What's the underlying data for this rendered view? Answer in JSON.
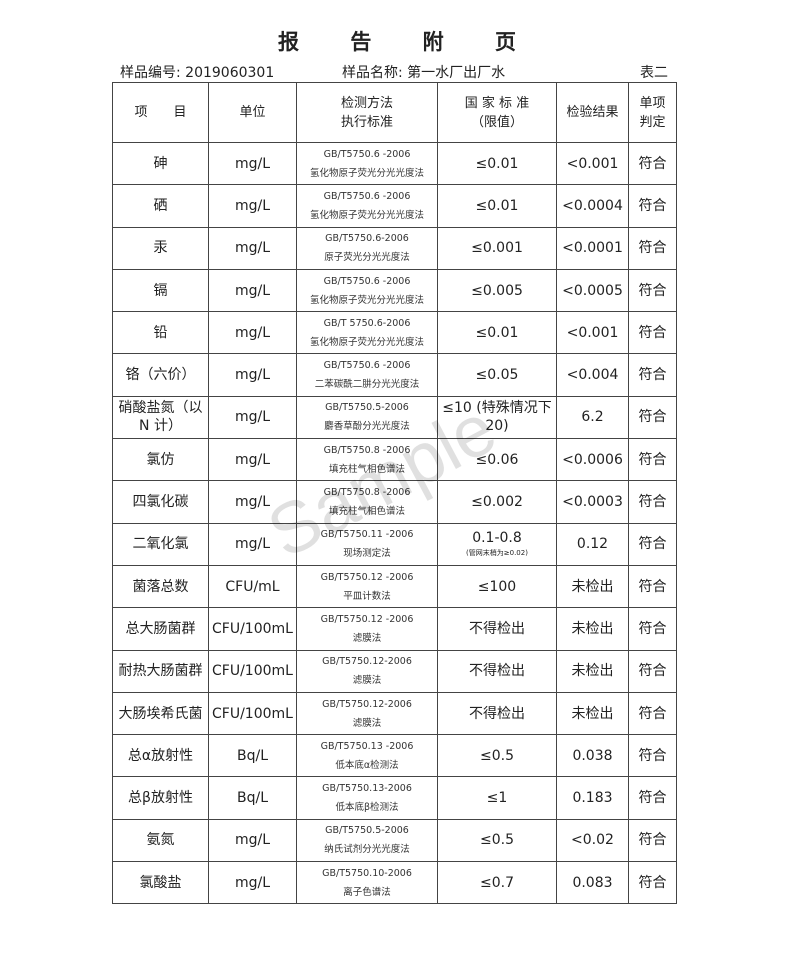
{
  "title": "报 告 附 页",
  "sample_no": "样品编号: 2019060301",
  "sample_name": "样品名称: 第一水厂出厂水",
  "table_label": "表二",
  "watermark": "Sample",
  "headers": {
    "item": "项　　目",
    "unit": "单位",
    "method1": "检测方法",
    "method2": "执行标准",
    "std1": "国 家 标 准",
    "std2": "（限值）",
    "result": "检验结果",
    "judge1": "单项",
    "judge2": "判定"
  },
  "rows": [
    {
      "item": "砷",
      "unit": "mg/L",
      "std": "GB/T5750.6 -2006",
      "method": "氢化物原子荧光分光光度法",
      "limit": "≤0.01",
      "result": "<0.001",
      "judge": "符合"
    },
    {
      "item": "硒",
      "unit": "mg/L",
      "std": "GB/T5750.6 -2006",
      "method": "氢化物原子荧光分光光度法",
      "limit": "≤0.01",
      "result": "<0.0004",
      "judge": "符合"
    },
    {
      "item": "汞",
      "unit": "mg/L",
      "std": "GB/T5750.6-2006",
      "method": "原子荧光分光光度法",
      "limit": "≤0.001",
      "result": "<0.0001",
      "judge": "符合"
    },
    {
      "item": "镉",
      "unit": "mg/L",
      "std": "GB/T5750.6 -2006",
      "method": "氢化物原子荧光分光光度法",
      "limit": "≤0.005",
      "result": "<0.0005",
      "judge": "符合"
    },
    {
      "item": "铅",
      "unit": "mg/L",
      "std": "GB/T 5750.6-2006",
      "method": "氢化物原子荧光分光光度法",
      "limit": "≤0.01",
      "result": "<0.001",
      "judge": "符合"
    },
    {
      "item": "铬（六价）",
      "unit": "mg/L",
      "std": "GB/T5750.6 -2006",
      "method": "二苯碳酰二肼分光光度法",
      "limit": "≤0.05",
      "result": "<0.004",
      "judge": "符合"
    },
    {
      "item": "硝酸盐氮（以 N 计）",
      "unit": "mg/L",
      "std": "GB/T5750.5-2006",
      "method": "麝香草酚分光光度法",
      "limit": "≤10 (特殊情况下 20)",
      "result": "6.2",
      "judge": "符合"
    },
    {
      "item": "氯仿",
      "unit": "mg/L",
      "std": "GB/T5750.8 -2006",
      "method": "填充柱气相色谱法",
      "limit": "≤0.06",
      "result": "<0.0006",
      "judge": "符合"
    },
    {
      "item": "四氯化碳",
      "unit": "mg/L",
      "std": "GB/T5750.8 -2006",
      "method": "填充柱气相色谱法",
      "limit": "≤0.002",
      "result": "<0.0003",
      "judge": "符合"
    },
    {
      "item": "二氧化氯",
      "unit": "mg/L",
      "std": "GB/T5750.11 -2006",
      "method": "现场测定法",
      "limit": "0.1-0.8",
      "note": "(管网末梢为≥0.02)",
      "result": "0.12",
      "judge": "符合"
    },
    {
      "item": "菌落总数",
      "unit": "CFU/mL",
      "std": "GB/T5750.12 -2006",
      "method": "平皿计数法",
      "limit": "≤100",
      "result": "未检出",
      "judge": "符合"
    },
    {
      "item": "总大肠菌群",
      "unit": "CFU/100mL",
      "std": "GB/T5750.12 -2006",
      "method": "滤膜法",
      "limit": "不得检出",
      "result": "未检出",
      "judge": "符合"
    },
    {
      "item": "耐热大肠菌群",
      "unit": "CFU/100mL",
      "std": "GB/T5750.12-2006",
      "method": "滤膜法",
      "limit": "不得检出",
      "result": "未检出",
      "judge": "符合"
    },
    {
      "item": "大肠埃希氏菌",
      "unit": "CFU/100mL",
      "std": "GB/T5750.12-2006",
      "method": "滤膜法",
      "limit": "不得检出",
      "result": "未检出",
      "judge": "符合"
    },
    {
      "item": "总α放射性",
      "unit": "Bq/L",
      "std": "GB/T5750.13 -2006",
      "method": "低本底α检测法",
      "limit": "≤0.5",
      "result": "0.038",
      "judge": "符合"
    },
    {
      "item": "总β放射性",
      "unit": "Bq/L",
      "std": "GB/T5750.13-2006",
      "method": "低本底β检测法",
      "limit": "≤1",
      "result": "0.183",
      "judge": "符合"
    },
    {
      "item": "氨氮",
      "unit": "mg/L",
      "std": "GB/T5750.5-2006",
      "method": "纳氏试剂分光光度法",
      "limit": "≤0.5",
      "result": "<0.02",
      "judge": "符合"
    },
    {
      "item": "氯酸盐",
      "unit": "mg/L",
      "std": "GB/T5750.10-2006",
      "method": "离子色谱法",
      "limit": "≤0.7",
      "result": "0.083",
      "judge": "符合"
    }
  ]
}
